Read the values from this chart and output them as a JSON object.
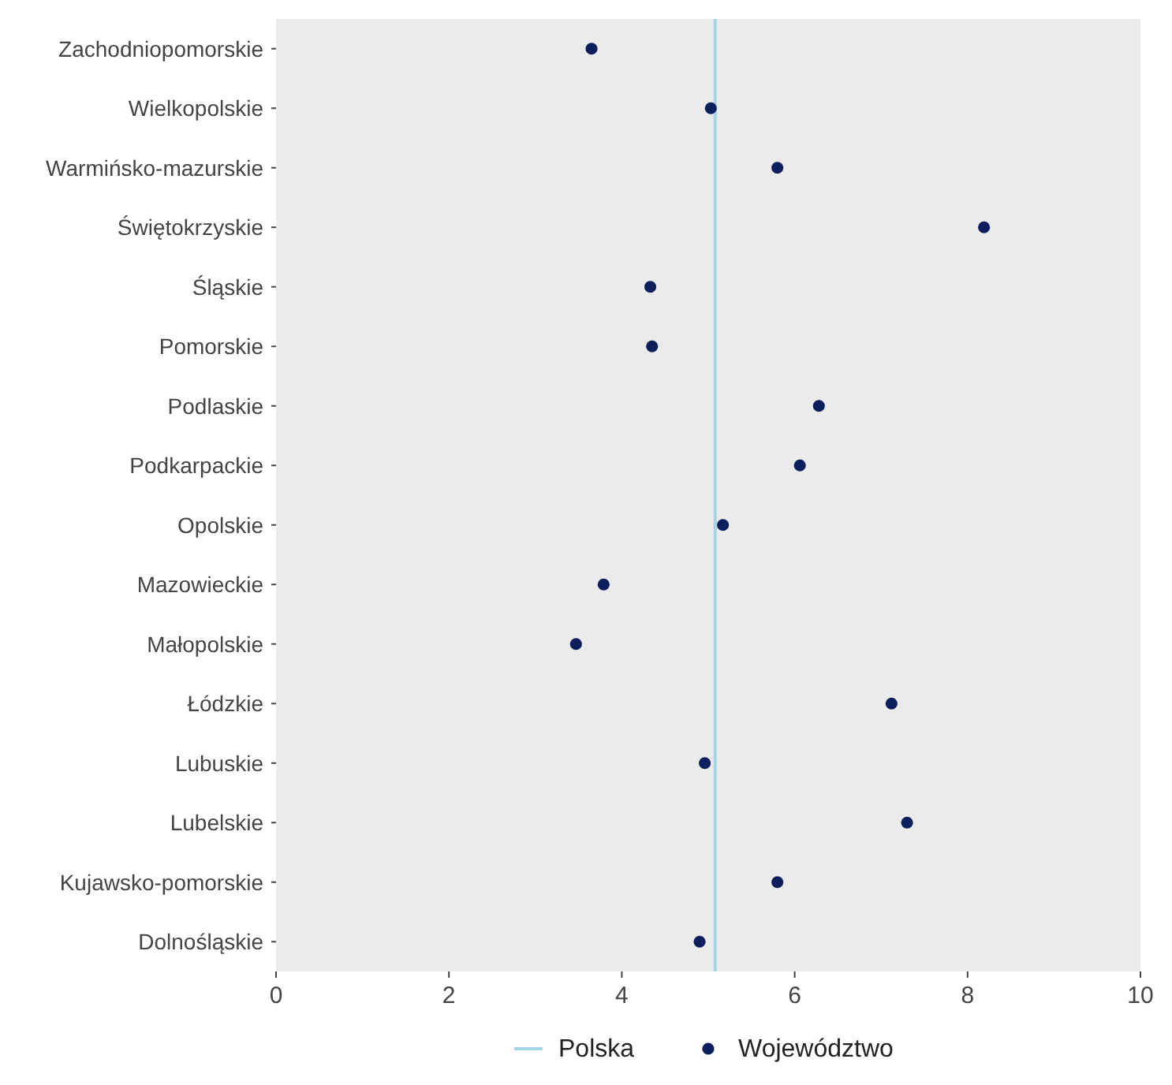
{
  "chart_data": {
    "type": "scatter",
    "orientation": "horizontal",
    "categories": [
      "Zachodniopomorskie",
      "Wielkopolskie",
      "Warmińsko-mazurskie",
      "Świętokrzyskie",
      "Śląskie",
      "Pomorskie",
      "Podlaskie",
      "Podkarpackie",
      "Opolskie",
      "Mazowieckie",
      "Małopolskie",
      "Łódzkie",
      "Lubuskie",
      "Lubelskie",
      "Kujawsko-pomorskie",
      "Dolnośląskie"
    ],
    "series": [
      {
        "name": "Województwo",
        "color": "#0b1f5c",
        "values": [
          3.65,
          5.03,
          5.8,
          8.19,
          4.33,
          4.35,
          6.28,
          6.06,
          5.17,
          3.79,
          3.47,
          7.12,
          4.96,
          7.3,
          5.8,
          4.9
        ]
      }
    ],
    "xlim": [
      0,
      10
    ],
    "xticks": [
      0,
      2,
      4,
      6,
      8,
      10
    ],
    "ref_lines": [
      {
        "axis": "x",
        "value": 5.08,
        "label": "Polska",
        "color": "#a6d5e6"
      }
    ],
    "marker": "circle",
    "legend": "bottom",
    "grid": false
  }
}
